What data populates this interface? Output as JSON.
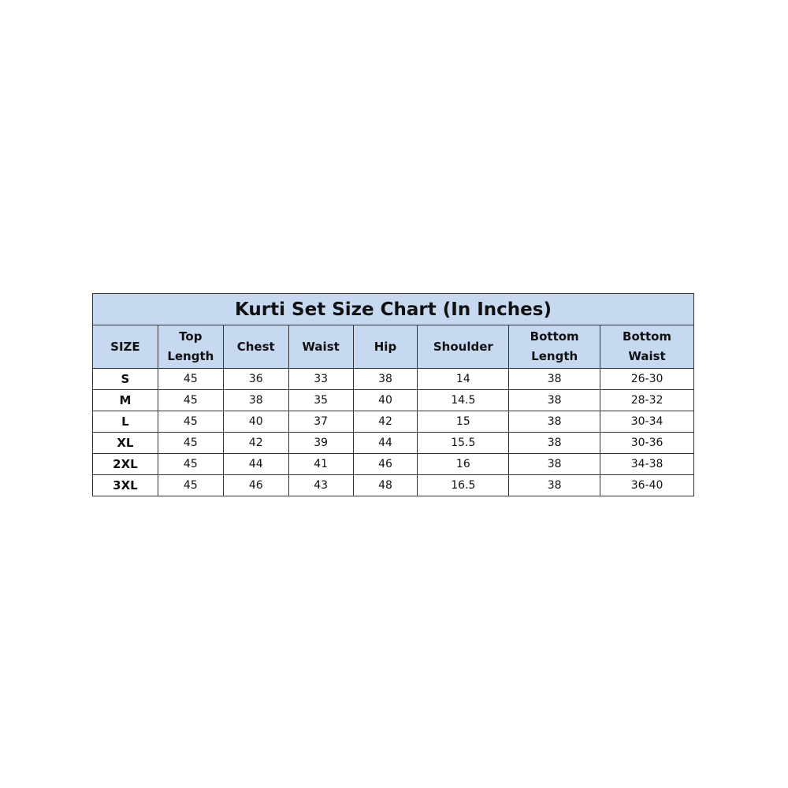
{
  "title": "Kurti Set Size Chart (In Inches)",
  "columns": [
    [
      "SIZE"
    ],
    [
      "Top",
      "Length"
    ],
    [
      "Chest"
    ],
    [
      "Waist"
    ],
    [
      "Hip"
    ],
    [
      "Shoulder"
    ],
    [
      "Bottom",
      "Length"
    ],
    [
      "Bottom",
      "Waist"
    ]
  ],
  "rows": [
    [
      "S",
      "45",
      "36",
      "33",
      "38",
      "14",
      "38",
      "26-30"
    ],
    [
      "M",
      "45",
      "38",
      "35",
      "40",
      "14.5",
      "38",
      "28-32"
    ],
    [
      "L",
      "45",
      "40",
      "37",
      "42",
      "15",
      "38",
      "30-34"
    ],
    [
      "XL",
      "45",
      "42",
      "39",
      "44",
      "15.5",
      "38",
      "30-36"
    ],
    [
      "2XL",
      "45",
      "44",
      "41",
      "46",
      "16",
      "38",
      "34-38"
    ],
    [
      "3XL",
      "45",
      "46",
      "43",
      "48",
      "16.5",
      "38",
      "36-40"
    ]
  ],
  "colors": {
    "header_bg": "#c6d9f0",
    "border": "#333333"
  }
}
